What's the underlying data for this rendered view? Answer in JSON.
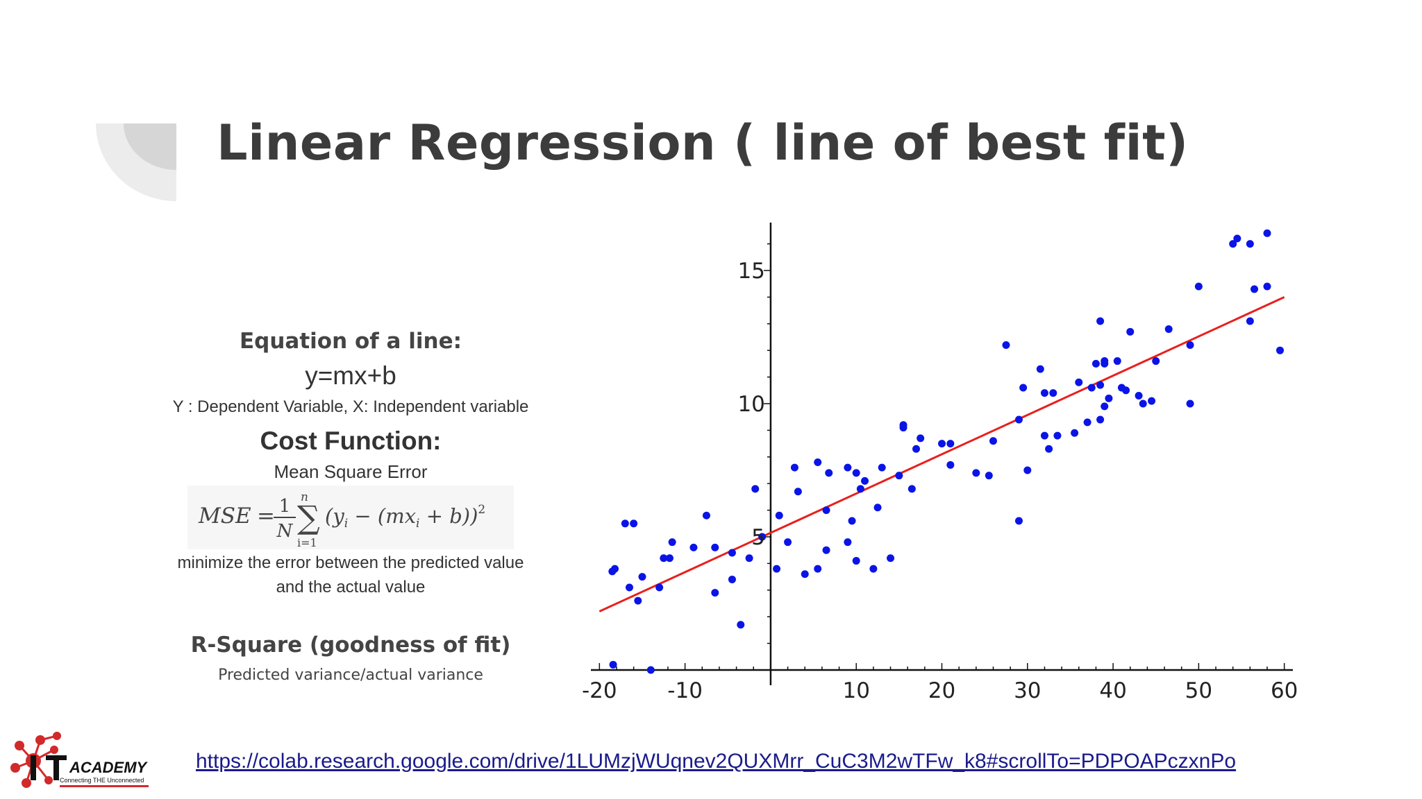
{
  "slide": {
    "title": "Linear Regression ( line of best fit)"
  },
  "left_panel": {
    "equation_heading": "Equation of a line:",
    "equation": "y=mx+b",
    "variables": "Y : Dependent Variable, X: Independent variable",
    "cost_heading": "Cost Function:",
    "cost_subheading": "Mean Square Error",
    "cost_description_line1": "minimize the error between the predicted value",
    "cost_description_line2": "and the actual value",
    "rsquare_heading": "R-Square (goodness of fit)",
    "rsquare_subheading": "Predicted variance/actual variance"
  },
  "mse_formula": {
    "lhs": "MSE",
    "eq": "=",
    "num": "1",
    "den": "N",
    "sum": "∑",
    "sum_upper": "n",
    "sum_lower": "i=1",
    "body": "(y",
    "body_sub": "i",
    "body_mid": " − (mx",
    "body_sub2": "i",
    "body_end": " + b))",
    "power": "2"
  },
  "footer": {
    "link_text": "https://colab.research.google.com/drive/1LUMzjWUqnev2QUXMrr_CuC3M2wTFw_k8#scrollTo=PDPOAPczxnPo"
  },
  "logo": {
    "text": "ACADEMY",
    "tagline": "Connecting THE Unconnected",
    "colors": {
      "red": "#d12a2a",
      "dark": "#111111"
    }
  },
  "chart_data": {
    "type": "scatter",
    "title": "",
    "xlabel": "",
    "ylabel": "",
    "xlim": [
      -21,
      61
    ],
    "ylim": [
      0,
      16.8
    ],
    "x_ticks": [
      -20,
      -10,
      10,
      20,
      30,
      40,
      50,
      60
    ],
    "x_tick_labels": [
      "-20",
      "-10",
      "10",
      "20",
      "30",
      "40",
      "50",
      "60"
    ],
    "y_ticks": [
      5,
      10,
      15
    ],
    "y_tick_labels": [
      "5",
      "10",
      "15"
    ],
    "grid": false,
    "point_color": "#0a14e6",
    "line_color": "#e8201e",
    "regression_line": {
      "x1": -20,
      "y1": 2.2,
      "x2": 60,
      "y2": 14.0
    },
    "series": [
      {
        "name": "data points",
        "points": [
          [
            -18.5,
            3.7
          ],
          [
            -18.2,
            3.8
          ],
          [
            -18.4,
            0.2
          ],
          [
            -17.0,
            5.5
          ],
          [
            -16.5,
            3.1
          ],
          [
            -16.0,
            5.5
          ],
          [
            -15.5,
            2.6
          ],
          [
            -15.0,
            3.5
          ],
          [
            -14.0,
            0.0
          ],
          [
            -13.0,
            3.1
          ],
          [
            -12.5,
            4.2
          ],
          [
            -11.8,
            4.2
          ],
          [
            -11.5,
            4.8
          ],
          [
            -9.0,
            4.6
          ],
          [
            -7.5,
            5.8
          ],
          [
            -6.5,
            4.6
          ],
          [
            -6.5,
            2.9
          ],
          [
            -4.5,
            3.4
          ],
          [
            -4.5,
            4.4
          ],
          [
            -3.5,
            1.7
          ],
          [
            -2.5,
            4.2
          ],
          [
            -1.8,
            6.8
          ],
          [
            -1.0,
            5.0
          ],
          [
            0.7,
            3.8
          ],
          [
            1.0,
            5.8
          ],
          [
            2.0,
            4.8
          ],
          [
            2.8,
            7.6
          ],
          [
            3.2,
            6.7
          ],
          [
            4.0,
            3.6
          ],
          [
            5.5,
            3.8
          ],
          [
            5.5,
            7.8
          ],
          [
            6.5,
            4.5
          ],
          [
            6.8,
            7.4
          ],
          [
            6.5,
            6.0
          ],
          [
            9.0,
            4.8
          ],
          [
            9.0,
            7.6
          ],
          [
            9.5,
            5.6
          ],
          [
            10.0,
            4.1
          ],
          [
            10.0,
            7.4
          ],
          [
            10.5,
            6.8
          ],
          [
            11.0,
            7.1
          ],
          [
            12.0,
            3.8
          ],
          [
            12.5,
            6.1
          ],
          [
            13.0,
            7.6
          ],
          [
            14.0,
            4.2
          ],
          [
            15.0,
            7.3
          ],
          [
            15.5,
            9.2
          ],
          [
            15.5,
            9.1
          ],
          [
            16.5,
            6.8
          ],
          [
            17.0,
            8.3
          ],
          [
            17.5,
            8.7
          ],
          [
            20.0,
            8.5
          ],
          [
            21.0,
            8.5
          ],
          [
            21.0,
            7.7
          ],
          [
            24.0,
            7.4
          ],
          [
            25.5,
            7.3
          ],
          [
            26.0,
            8.6
          ],
          [
            27.5,
            12.2
          ],
          [
            29.0,
            5.6
          ],
          [
            29.0,
            9.4
          ],
          [
            29.5,
            10.6
          ],
          [
            30.0,
            7.5
          ],
          [
            31.5,
            11.3
          ],
          [
            32.0,
            10.4
          ],
          [
            32.5,
            8.3
          ],
          [
            32.0,
            8.8
          ],
          [
            33.0,
            10.4
          ],
          [
            33.5,
            8.8
          ],
          [
            35.5,
            8.9
          ],
          [
            36.0,
            10.8
          ],
          [
            37.0,
            9.3
          ],
          [
            37.5,
            10.6
          ],
          [
            38.0,
            11.5
          ],
          [
            38.5,
            9.4
          ],
          [
            38.5,
            10.7
          ],
          [
            38.5,
            13.1
          ],
          [
            39.0,
            11.6
          ],
          [
            39.0,
            11.5
          ],
          [
            39.0,
            9.9
          ],
          [
            39.5,
            10.2
          ],
          [
            40.5,
            11.6
          ],
          [
            41.0,
            10.6
          ],
          [
            41.5,
            10.5
          ],
          [
            42.0,
            12.7
          ],
          [
            43.0,
            10.3
          ],
          [
            43.5,
            10.0
          ],
          [
            44.5,
            10.1
          ],
          [
            45.0,
            11.6
          ],
          [
            46.5,
            12.8
          ],
          [
            49.0,
            12.2
          ],
          [
            49.0,
            10.0
          ],
          [
            50.0,
            14.4
          ],
          [
            54.0,
            16.0
          ],
          [
            54.5,
            16.2
          ],
          [
            56.0,
            16.0
          ],
          [
            56.0,
            13.1
          ],
          [
            56.5,
            14.3
          ],
          [
            58.0,
            16.4
          ],
          [
            58.0,
            14.4
          ],
          [
            59.5,
            12.0
          ]
        ]
      }
    ]
  }
}
